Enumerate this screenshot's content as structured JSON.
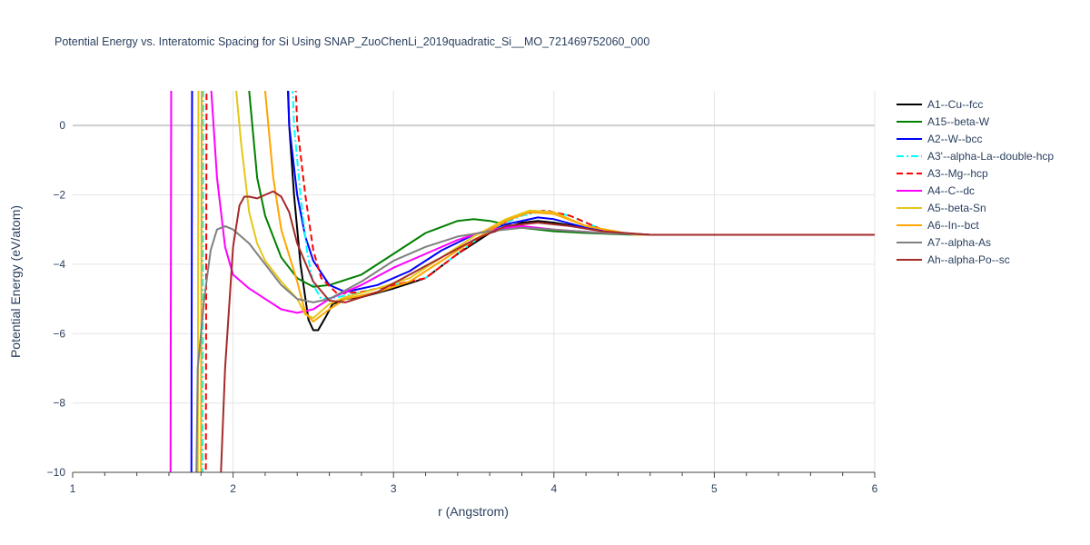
{
  "chart_data": {
    "type": "line",
    "title": "Potential Energy vs. Interatomic Spacing for Si Using SNAP_ZuoChenLi_2019quadratic_Si__MO_721469752060_000",
    "xlabel": "r (Angstrom)",
    "ylabel": "Potential Energy (eV/atom)",
    "xlim": [
      1,
      6
    ],
    "ylim": [
      -10,
      1
    ],
    "x_ticks": [
      "1",
      "2",
      "3",
      "4",
      "5",
      "6"
    ],
    "y_ticks": [
      "0",
      "−2",
      "−4",
      "−6",
      "−8",
      "−10"
    ],
    "grid": true,
    "legend_position": "right",
    "series": [
      {
        "name": "A1--Cu--fcc",
        "color": "#000000",
        "dash": "solid",
        "points": [
          [
            2.3,
            8
          ],
          [
            2.35,
            0
          ],
          [
            2.38,
            -2
          ],
          [
            2.42,
            -4
          ],
          [
            2.47,
            -5.6
          ],
          [
            2.5,
            -5.9
          ],
          [
            2.53,
            -5.9
          ],
          [
            2.58,
            -5.5
          ],
          [
            2.62,
            -5.15
          ],
          [
            2.7,
            -5.0
          ],
          [
            2.8,
            -4.95
          ],
          [
            3.0,
            -4.7
          ],
          [
            3.2,
            -4.4
          ],
          [
            3.4,
            -3.7
          ],
          [
            3.6,
            -3.1
          ],
          [
            3.8,
            -2.8
          ],
          [
            3.9,
            -2.75
          ],
          [
            4.0,
            -2.8
          ],
          [
            4.2,
            -2.95
          ],
          [
            4.4,
            -3.1
          ],
          [
            4.6,
            -3.15
          ],
          [
            5.0,
            -3.15
          ],
          [
            6.0,
            -3.15
          ]
        ]
      },
      {
        "name": "A15--beta-W",
        "color": "#008000",
        "dash": "solid",
        "points": [
          [
            2.05,
            8
          ],
          [
            2.1,
            1
          ],
          [
            2.15,
            -1.5
          ],
          [
            2.2,
            -2.6
          ],
          [
            2.3,
            -3.8
          ],
          [
            2.4,
            -4.4
          ],
          [
            2.5,
            -4.65
          ],
          [
            2.6,
            -4.6
          ],
          [
            2.8,
            -4.3
          ],
          [
            3.0,
            -3.7
          ],
          [
            3.2,
            -3.1
          ],
          [
            3.4,
            -2.75
          ],
          [
            3.5,
            -2.7
          ],
          [
            3.6,
            -2.75
          ],
          [
            3.8,
            -2.95
          ],
          [
            4.0,
            -3.05
          ],
          [
            4.2,
            -3.1
          ],
          [
            4.5,
            -3.15
          ],
          [
            6.0,
            -3.15
          ]
        ]
      },
      {
        "name": "A2--W--bcc",
        "color": "#0000ff",
        "dash": "solid",
        "points": [
          [
            1.74,
            -10.5
          ],
          [
            1.745,
            3
          ],
          [
            2.3,
            6
          ],
          [
            2.35,
            0
          ],
          [
            2.4,
            -2.0
          ],
          [
            2.45,
            -3.2
          ],
          [
            2.5,
            -3.9
          ],
          [
            2.6,
            -4.6
          ],
          [
            2.7,
            -4.8
          ],
          [
            2.9,
            -4.6
          ],
          [
            3.1,
            -4.2
          ],
          [
            3.3,
            -3.6
          ],
          [
            3.5,
            -3.15
          ],
          [
            3.7,
            -2.85
          ],
          [
            3.9,
            -2.65
          ],
          [
            4.0,
            -2.7
          ],
          [
            4.2,
            -2.95
          ],
          [
            4.4,
            -3.1
          ],
          [
            4.6,
            -3.15
          ],
          [
            6.0,
            -3.15
          ]
        ]
      },
      {
        "name": "A3'--alpha-La--double-hcp",
        "color": "#00ffff",
        "dash": "dashdot",
        "points": [
          [
            1.81,
            -10.5
          ],
          [
            1.815,
            3
          ],
          [
            2.33,
            6
          ],
          [
            2.38,
            0
          ],
          [
            2.42,
            -2.0
          ],
          [
            2.46,
            -3.6
          ],
          [
            2.5,
            -4.6
          ],
          [
            2.55,
            -5.0
          ],
          [
            2.65,
            -4.95
          ],
          [
            2.8,
            -4.8
          ],
          [
            3.0,
            -4.6
          ],
          [
            3.2,
            -4.4
          ],
          [
            3.4,
            -3.7
          ],
          [
            3.6,
            -3.0
          ],
          [
            3.8,
            -2.6
          ],
          [
            3.95,
            -2.45
          ],
          [
            4.1,
            -2.6
          ],
          [
            4.3,
            -3.0
          ],
          [
            4.5,
            -3.15
          ],
          [
            6.0,
            -3.15
          ]
        ]
      },
      {
        "name": "A3--Mg--hcp",
        "color": "#ff0000",
        "dash": "dash",
        "points": [
          [
            1.83,
            -10.5
          ],
          [
            1.835,
            3
          ],
          [
            2.35,
            6
          ],
          [
            2.4,
            0
          ],
          [
            2.45,
            -2.0
          ],
          [
            2.5,
            -3.6
          ],
          [
            2.55,
            -4.4
          ],
          [
            2.65,
            -4.85
          ],
          [
            2.8,
            -4.8
          ],
          [
            3.0,
            -4.6
          ],
          [
            3.2,
            -4.4
          ],
          [
            3.4,
            -3.7
          ],
          [
            3.6,
            -3.0
          ],
          [
            3.8,
            -2.55
          ],
          [
            3.95,
            -2.45
          ],
          [
            4.1,
            -2.6
          ],
          [
            4.3,
            -3.0
          ],
          [
            4.5,
            -3.15
          ],
          [
            6.0,
            -3.15
          ]
        ]
      },
      {
        "name": "A4--C--dc",
        "color": "#ff00ff",
        "dash": "solid",
        "points": [
          [
            1.61,
            -10.5
          ],
          [
            1.615,
            3
          ],
          [
            1.8,
            6
          ],
          [
            1.85,
            2
          ],
          [
            1.9,
            -1.5
          ],
          [
            1.95,
            -3.5
          ],
          [
            2.0,
            -4.3
          ],
          [
            2.1,
            -4.7
          ],
          [
            2.2,
            -5.0
          ],
          [
            2.3,
            -5.3
          ],
          [
            2.4,
            -5.4
          ],
          [
            2.5,
            -5.3
          ],
          [
            2.6,
            -5.0
          ],
          [
            2.8,
            -4.6
          ],
          [
            3.0,
            -4.1
          ],
          [
            3.2,
            -3.7
          ],
          [
            3.4,
            -3.3
          ],
          [
            3.6,
            -3.0
          ],
          [
            3.8,
            -2.9
          ],
          [
            4.0,
            -3.0
          ],
          [
            4.3,
            -3.1
          ],
          [
            4.6,
            -3.15
          ],
          [
            6.0,
            -3.15
          ]
        ]
      },
      {
        "name": "A5--beta-Sn",
        "color": "#e6c619",
        "dash": "solid",
        "points": [
          [
            1.78,
            -10.5
          ],
          [
            1.785,
            3
          ],
          [
            2.0,
            8
          ],
          [
            2.02,
            1
          ],
          [
            2.05,
            -0.5
          ],
          [
            2.1,
            -2.5
          ],
          [
            2.15,
            -3.4
          ],
          [
            2.2,
            -3.9
          ],
          [
            2.3,
            -4.5
          ],
          [
            2.4,
            -5.0
          ],
          [
            2.45,
            -5.45
          ],
          [
            2.5,
            -5.55
          ],
          [
            2.6,
            -5.15
          ],
          [
            2.7,
            -4.95
          ],
          [
            2.9,
            -4.7
          ],
          [
            3.1,
            -4.4
          ],
          [
            3.3,
            -3.8
          ],
          [
            3.5,
            -3.2
          ],
          [
            3.7,
            -2.7
          ],
          [
            3.85,
            -2.45
          ],
          [
            4.0,
            -2.5
          ],
          [
            4.2,
            -2.9
          ],
          [
            4.5,
            -3.15
          ],
          [
            6.0,
            -3.15
          ]
        ]
      },
      {
        "name": "A6--In--bct",
        "color": "#ffa500",
        "dash": "solid",
        "points": [
          [
            1.8,
            -10.5
          ],
          [
            1.805,
            3
          ],
          [
            2.15,
            8
          ],
          [
            2.2,
            1
          ],
          [
            2.25,
            -1.5
          ],
          [
            2.3,
            -3.0
          ],
          [
            2.4,
            -4.5
          ],
          [
            2.45,
            -5.4
          ],
          [
            2.5,
            -5.65
          ],
          [
            2.6,
            -5.3
          ],
          [
            2.7,
            -5.0
          ],
          [
            2.9,
            -4.8
          ],
          [
            3.1,
            -4.5
          ],
          [
            3.3,
            -3.9
          ],
          [
            3.5,
            -3.3
          ],
          [
            3.7,
            -2.75
          ],
          [
            3.85,
            -2.5
          ],
          [
            4.0,
            -2.55
          ],
          [
            4.2,
            -2.9
          ],
          [
            4.5,
            -3.15
          ],
          [
            6.0,
            -3.15
          ]
        ]
      },
      {
        "name": "A7--alpha-As",
        "color": "#808080",
        "dash": "solid",
        "points": [
          [
            1.77,
            -10.5
          ],
          [
            1.78,
            -7
          ],
          [
            1.82,
            -5.0
          ],
          [
            1.86,
            -3.6
          ],
          [
            1.9,
            -3.0
          ],
          [
            1.95,
            -2.9
          ],
          [
            2.0,
            -3.0
          ],
          [
            2.1,
            -3.4
          ],
          [
            2.2,
            -4.0
          ],
          [
            2.3,
            -4.6
          ],
          [
            2.4,
            -5.0
          ],
          [
            2.5,
            -5.1
          ],
          [
            2.6,
            -5.0
          ],
          [
            2.8,
            -4.5
          ],
          [
            3.0,
            -3.9
          ],
          [
            3.2,
            -3.5
          ],
          [
            3.4,
            -3.2
          ],
          [
            3.6,
            -3.05
          ],
          [
            3.8,
            -2.95
          ],
          [
            4.0,
            -3.0
          ],
          [
            4.3,
            -3.1
          ],
          [
            4.6,
            -3.15
          ],
          [
            6.0,
            -3.15
          ]
        ]
      },
      {
        "name": "Ah--alpha-Po--sc",
        "color": "#a52a2a",
        "dash": "solid",
        "points": [
          [
            1.92,
            -10.5
          ],
          [
            1.95,
            -7
          ],
          [
            2.0,
            -3.5
          ],
          [
            2.04,
            -2.3
          ],
          [
            2.07,
            -2.05
          ],
          [
            2.1,
            -2.05
          ],
          [
            2.15,
            -2.1
          ],
          [
            2.2,
            -2.0
          ],
          [
            2.25,
            -1.9
          ],
          [
            2.3,
            -2.05
          ],
          [
            2.35,
            -2.5
          ],
          [
            2.4,
            -3.4
          ],
          [
            2.5,
            -4.5
          ],
          [
            2.6,
            -5.05
          ],
          [
            2.7,
            -5.1
          ],
          [
            2.9,
            -4.8
          ],
          [
            3.1,
            -4.3
          ],
          [
            3.3,
            -3.8
          ],
          [
            3.5,
            -3.3
          ],
          [
            3.7,
            -2.9
          ],
          [
            3.9,
            -2.8
          ],
          [
            4.1,
            -2.9
          ],
          [
            4.3,
            -3.05
          ],
          [
            4.6,
            -3.15
          ],
          [
            6.0,
            -3.15
          ]
        ]
      }
    ]
  }
}
